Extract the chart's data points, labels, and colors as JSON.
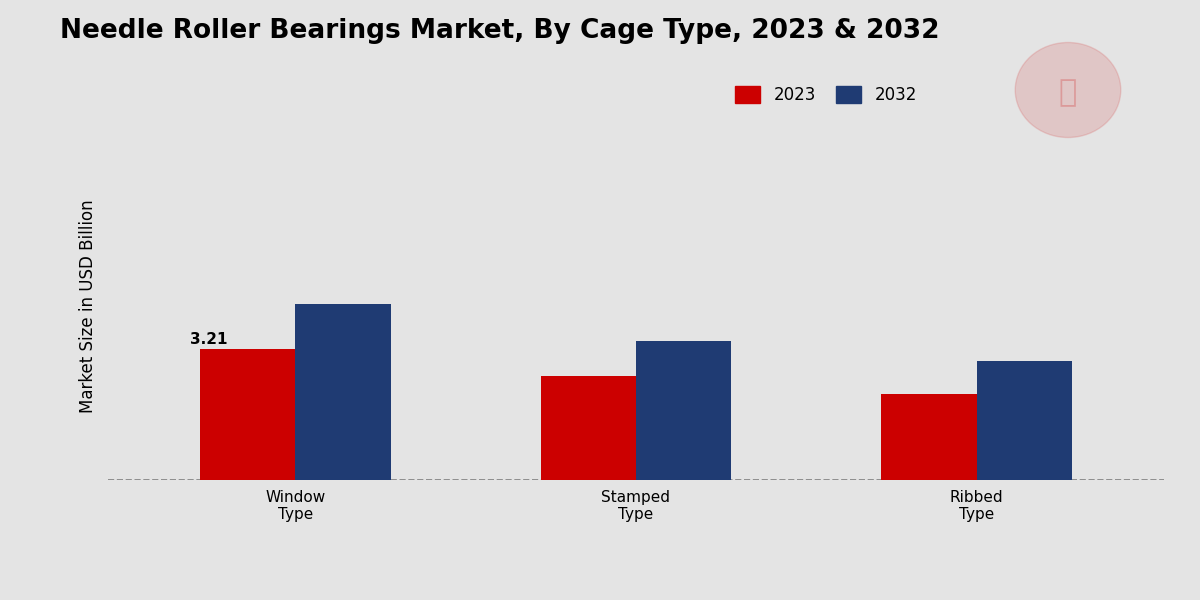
{
  "title": "Needle Roller Bearings Market, By Cage Type, 2023 & 2032",
  "ylabel": "Market Size in USD Billion",
  "categories": [
    "Window\nType",
    "Stamped\nType",
    "Ribbed\nType"
  ],
  "values_2023": [
    3.21,
    2.55,
    2.1
  ],
  "values_2032": [
    4.3,
    3.4,
    2.9
  ],
  "bar_color_2023": "#cc0000",
  "bar_color_2032": "#1f3b73",
  "background_color": "#e4e4e4",
  "annotation_label": "3.21",
  "bar_width": 0.28,
  "ylim": [
    0,
    8.5
  ],
  "legend_labels": [
    "2023",
    "2032"
  ],
  "title_fontsize": 19,
  "axis_label_fontsize": 12,
  "tick_label_fontsize": 11,
  "legend_fontsize": 12,
  "annotation_fontsize": 11,
  "bottom_bar_color": "#cc0000",
  "bottom_bar_height": 0.055
}
